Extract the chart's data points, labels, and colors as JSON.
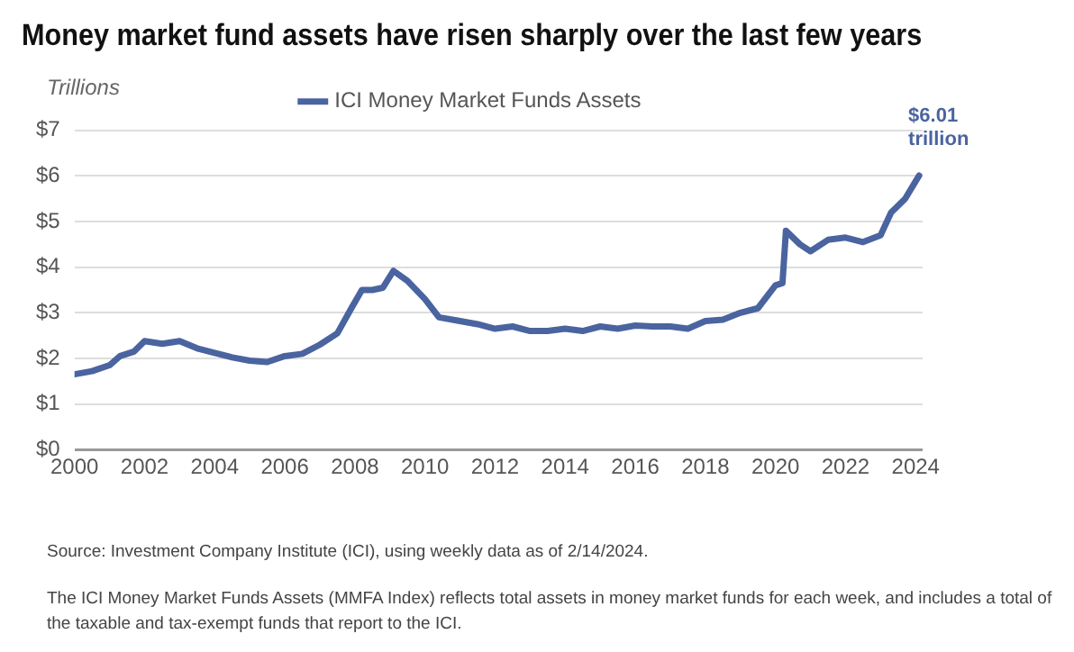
{
  "chart_data": {
    "type": "line",
    "title": "Money market fund assets have risen sharply over the last few years",
    "ylabel": "Trillions",
    "x": [
      2000,
      2000.5,
      2001,
      2001.3,
      2001.7,
      2002,
      2002.5,
      2003,
      2003.5,
      2004,
      2004.5,
      2005,
      2005.5,
      2006,
      2006.5,
      2007,
      2007.5,
      2007.9,
      2008.2,
      2008.5,
      2008.8,
      2009.1,
      2009.5,
      2010,
      2010.4,
      2011,
      2011.5,
      2012,
      2012.5,
      2013,
      2013.5,
      2014,
      2014.5,
      2015,
      2015.5,
      2016,
      2016.5,
      2017,
      2017.5,
      2018,
      2018.5,
      2019,
      2019.5,
      2020,
      2020.2,
      2020.3,
      2020.7,
      2021,
      2021.5,
      2022,
      2022.5,
      2023,
      2023.3,
      2023.7,
      2024.1
    ],
    "series": [
      {
        "name": "ICI Money Market Funds Assets",
        "color": "#4a64a0",
        "values": [
          1.65,
          1.72,
          1.85,
          2.05,
          2.15,
          2.38,
          2.32,
          2.38,
          2.22,
          2.12,
          2.02,
          1.95,
          1.92,
          2.05,
          2.1,
          2.3,
          2.55,
          3.1,
          3.5,
          3.5,
          3.55,
          3.92,
          3.7,
          3.3,
          2.9,
          2.82,
          2.75,
          2.65,
          2.7,
          2.6,
          2.6,
          2.65,
          2.6,
          2.7,
          2.65,
          2.72,
          2.7,
          2.7,
          2.65,
          2.82,
          2.85,
          3.0,
          3.1,
          3.6,
          3.65,
          4.8,
          4.5,
          4.35,
          4.6,
          4.65,
          4.55,
          4.7,
          5.2,
          5.5,
          6.01
        ]
      }
    ],
    "xlim": [
      2000,
      2024.2
    ],
    "xticks": [
      2000,
      2002,
      2004,
      2006,
      2008,
      2010,
      2012,
      2014,
      2016,
      2018,
      2020,
      2022,
      2024
    ],
    "ylim": [
      0,
      7
    ],
    "yticks": [
      {
        "value": 0,
        "label": "$0"
      },
      {
        "value": 1,
        "label": "$1"
      },
      {
        "value": 2,
        "label": "$2"
      },
      {
        "value": 3,
        "label": "$3"
      },
      {
        "value": 4,
        "label": "$4"
      },
      {
        "value": 5,
        "label": "$5"
      },
      {
        "value": 6,
        "label": "$6"
      },
      {
        "value": 7,
        "label": "$7"
      }
    ],
    "grid": "y",
    "legend": "top",
    "marker": "none",
    "line_style": "solid",
    "annotations": [
      {
        "text": "$6.01 trillion",
        "x": 2024.1,
        "y": 6.01
      },
      "Source: Investment Company Institute (ICI), using weekly data as of 2/14/2024.",
      "The ICI Money Market Funds Assets (MMFA Index) reflects total assets in money market funds for each week, and includes a total of the taxable and tax-exempt funds that report to the ICI."
    ]
  }
}
